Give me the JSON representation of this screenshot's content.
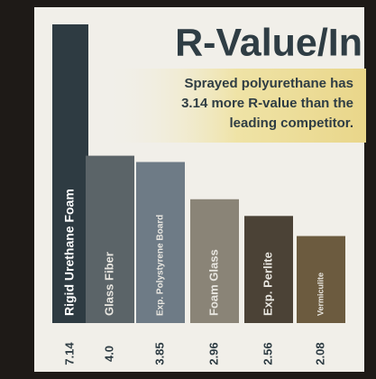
{
  "chart_data": {
    "type": "bar",
    "title": "R-Value/In",
    "annotation": [
      "Sprayed polyurethane has",
      "3.14 more R-value than the",
      "leading competitor."
    ],
    "categories": [
      "Rigid Urethane Foam",
      "Glass Fiber",
      "Exp. Polystyrene Board",
      "Foam Glass",
      "Exp. Perlite",
      "Vermiculite"
    ],
    "values": [
      7.14,
      4.0,
      3.85,
      2.96,
      2.56,
      2.08
    ],
    "value_labels": [
      "7.14",
      "4.0",
      "3.85",
      "2.96",
      "2.56",
      "2.08"
    ],
    "colors": [
      "#2e3b42",
      "#5b6468",
      "#6e7b86",
      "#8a8477",
      "#4b4236",
      "#6c5b3f"
    ]
  }
}
